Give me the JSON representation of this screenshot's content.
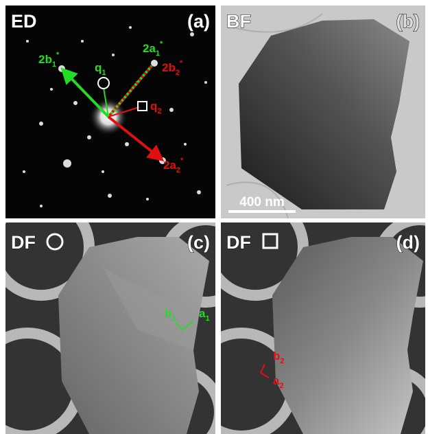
{
  "panels": [
    {
      "label": "ED",
      "tag": "(a)"
    },
    {
      "label": "BF",
      "tag": "(b)"
    },
    {
      "label": "DF",
      "tag": "(c)"
    },
    {
      "label": "DF",
      "tag": "(d)"
    }
  ],
  "scale_bar": "400 nm",
  "annotations": [
    {
      "text": "2b",
      "sub": "1",
      "sup": "*"
    },
    {
      "text": "2a",
      "sub": "1",
      "sup": "*"
    },
    {
      "text": "2b",
      "sub": "2",
      "sup": "*"
    },
    {
      "text": "2a",
      "sub": "2",
      "sup": "*"
    },
    {
      "text": "q",
      "sub": "1"
    },
    {
      "text": "q",
      "sub": "2"
    },
    {
      "text": "b",
      "sub": "1"
    },
    {
      "text": "a",
      "sub": "1"
    },
    {
      "text": "b",
      "sub": "2"
    },
    {
      "text": "a",
      "sub": "2"
    }
  ]
}
